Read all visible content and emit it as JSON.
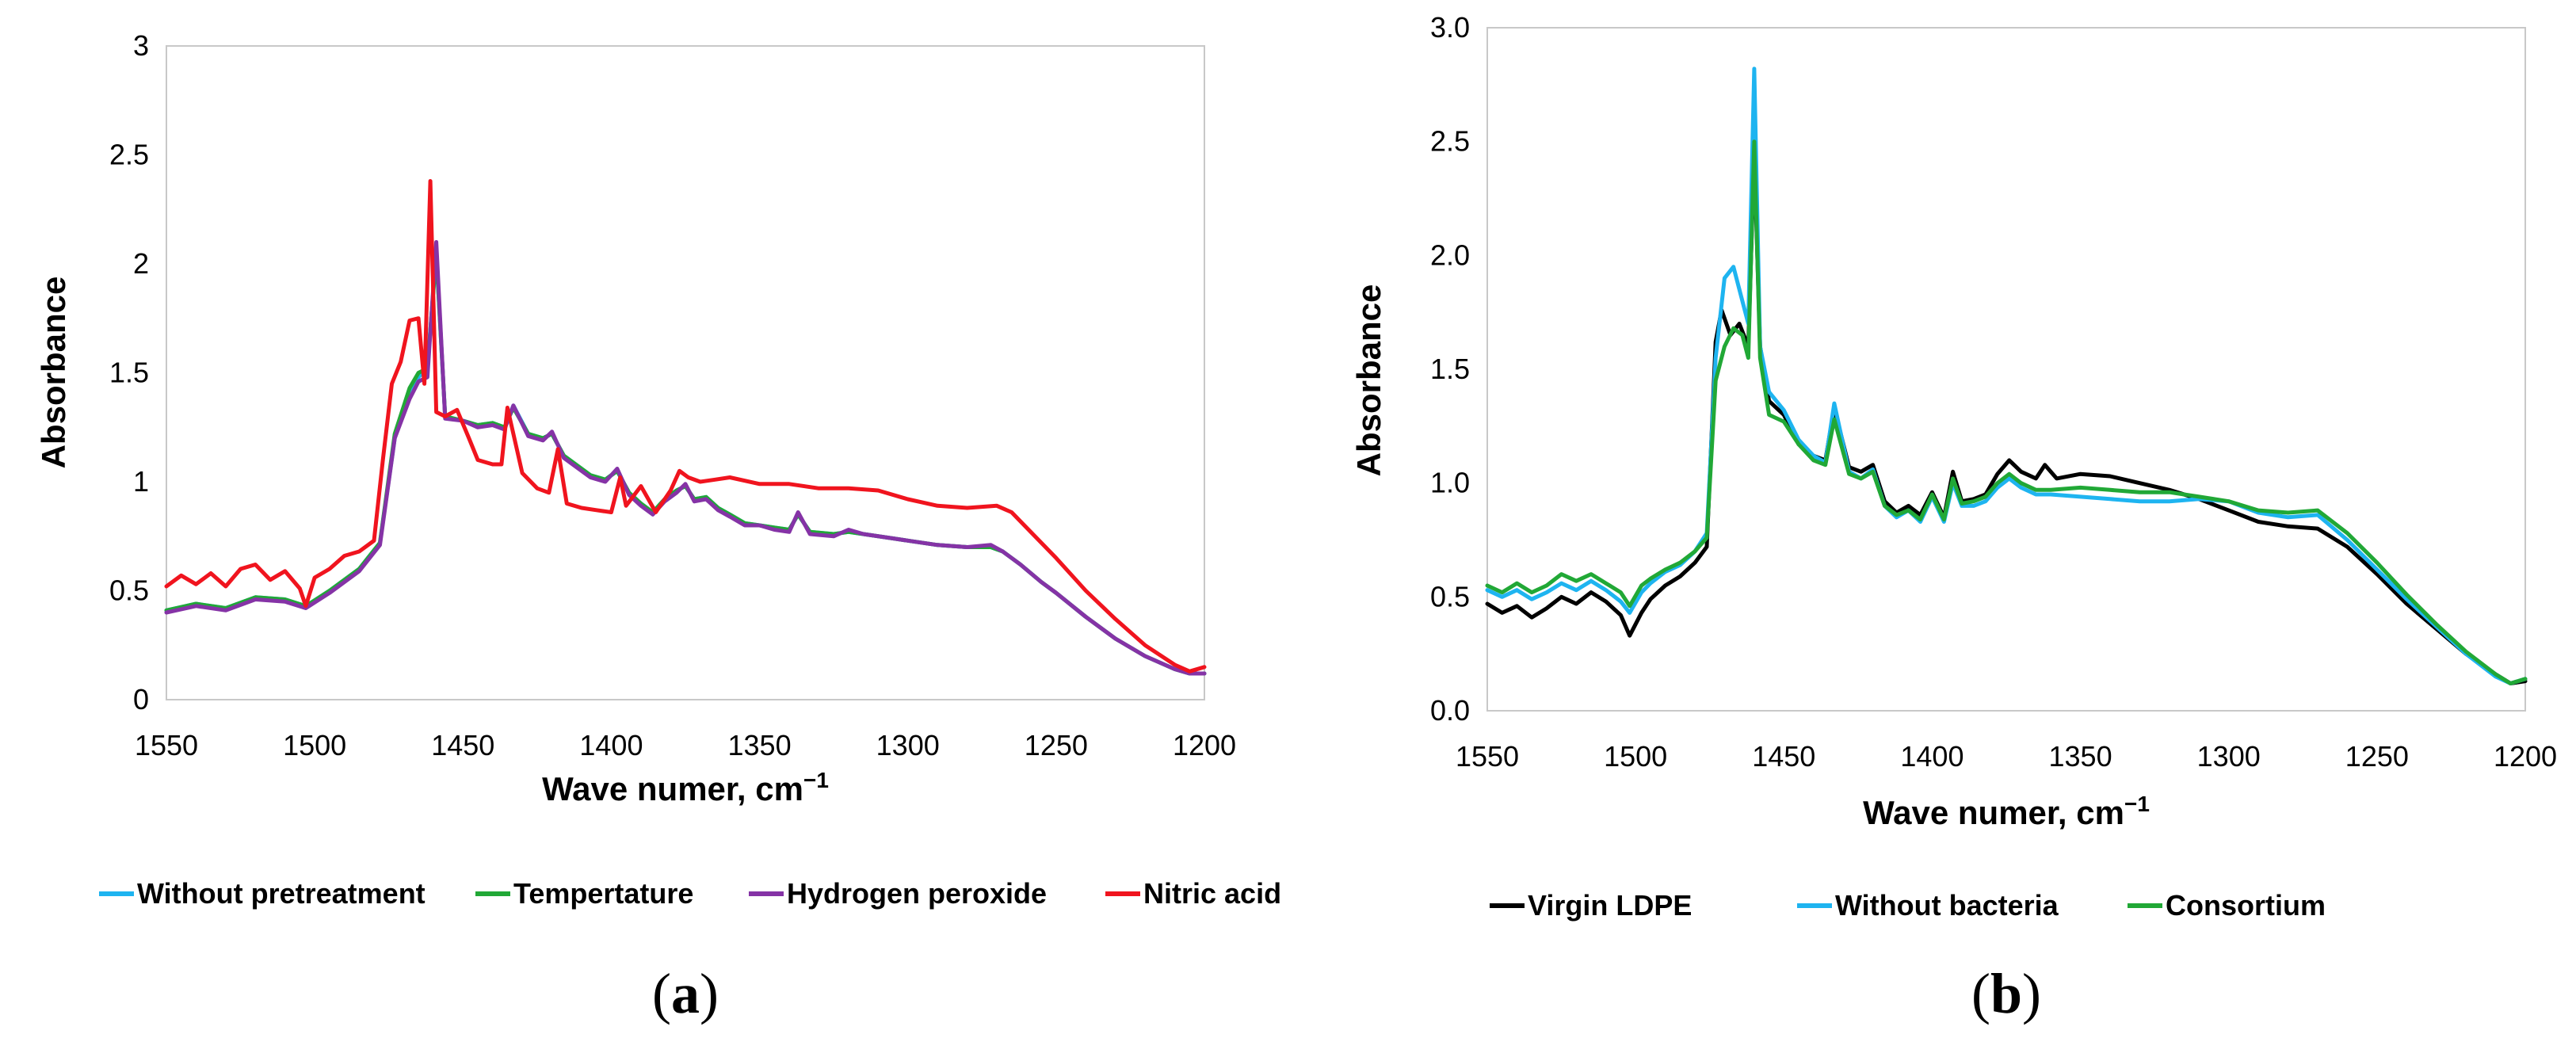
{
  "figure": {
    "panels": [
      {
        "label_open": "(",
        "label_letter": "a",
        "label_close": ")"
      },
      {
        "label_open": "(",
        "label_letter": "b",
        "label_close": ")"
      }
    ]
  },
  "chart_data": [
    {
      "type": "line",
      "title": "",
      "xlabel": "Wave numer, cm",
      "xlabel_sup": "−1",
      "ylabel": "Absorbance",
      "xlim": [
        1550,
        1200
      ],
      "ylim": [
        0,
        3
      ],
      "x_ticks": [
        "1550",
        "1500",
        "1450",
        "1400",
        "1350",
        "1300",
        "1250",
        "1200"
      ],
      "y_ticks": [
        "0",
        "0.5",
        "1",
        "1.5",
        "2",
        "2.5",
        "3"
      ],
      "grid": false,
      "legend_position": "bottom",
      "series": [
        {
          "name": "Without pretreatment",
          "color": "#1eb4f0",
          "x": [
            1550,
            1540,
            1530,
            1520,
            1510,
            1503,
            1495,
            1485,
            1478,
            1473,
            1468,
            1465,
            1462,
            1459,
            1456,
            1450,
            1445,
            1440,
            1436,
            1433,
            1428,
            1423,
            1420,
            1416,
            1412,
            1407,
            1402,
            1398,
            1394,
            1390,
            1386,
            1382,
            1378,
            1375,
            1372,
            1368,
            1364,
            1360,
            1355,
            1350,
            1345,
            1340,
            1337,
            1333,
            1325,
            1320,
            1315,
            1305,
            1300,
            1290,
            1280,
            1272,
            1268,
            1262,
            1255,
            1250,
            1240,
            1230,
            1220,
            1210,
            1205,
            1200
          ],
          "y": [
            0.41,
            0.44,
            0.42,
            0.47,
            0.46,
            0.43,
            0.5,
            0.6,
            0.72,
            1.2,
            1.42,
            1.48,
            1.52,
            2.05,
            1.3,
            1.28,
            1.26,
            1.27,
            1.25,
            1.35,
            1.22,
            1.2,
            1.22,
            1.12,
            1.08,
            1.03,
            1.01,
            1.05,
            0.95,
            0.9,
            0.86,
            0.92,
            0.96,
            0.98,
            0.92,
            0.93,
            0.88,
            0.85,
            0.81,
            0.8,
            0.79,
            0.78,
            0.85,
            0.77,
            0.76,
            0.77,
            0.76,
            0.74,
            0.73,
            0.71,
            0.7,
            0.7,
            0.68,
            0.62,
            0.54,
            0.49,
            0.38,
            0.28,
            0.2,
            0.14,
            0.12,
            0.12
          ]
        },
        {
          "name": "Tempertature",
          "color": "#21a836",
          "x": [
            1550,
            1540,
            1530,
            1520,
            1510,
            1503,
            1495,
            1485,
            1478,
            1473,
            1468,
            1465,
            1462,
            1459,
            1456,
            1450,
            1445,
            1440,
            1436,
            1433,
            1428,
            1423,
            1420,
            1416,
            1412,
            1407,
            1402,
            1398,
            1394,
            1390,
            1386,
            1382,
            1378,
            1375,
            1372,
            1368,
            1364,
            1360,
            1355,
            1350,
            1345,
            1340,
            1337,
            1333,
            1325,
            1320,
            1315,
            1305,
            1300,
            1290,
            1280,
            1272,
            1268,
            1262,
            1255,
            1250,
            1240,
            1230,
            1220,
            1210,
            1205,
            1200
          ],
          "y": [
            0.41,
            0.44,
            0.42,
            0.47,
            0.46,
            0.43,
            0.5,
            0.6,
            0.72,
            1.22,
            1.43,
            1.5,
            1.52,
            2.05,
            1.3,
            1.28,
            1.26,
            1.27,
            1.25,
            1.34,
            1.22,
            1.2,
            1.22,
            1.12,
            1.08,
            1.03,
            1.01,
            1.05,
            0.95,
            0.9,
            0.86,
            0.92,
            0.96,
            0.98,
            0.92,
            0.93,
            0.88,
            0.85,
            0.81,
            0.8,
            0.79,
            0.78,
            0.85,
            0.77,
            0.76,
            0.77,
            0.76,
            0.74,
            0.73,
            0.71,
            0.7,
            0.7,
            0.68,
            0.62,
            0.54,
            0.49,
            0.38,
            0.28,
            0.2,
            0.14,
            0.12,
            0.12
          ]
        },
        {
          "name": "Hydrogen peroxide",
          "color": "#8533a6",
          "x": [
            1550,
            1540,
            1530,
            1520,
            1510,
            1503,
            1495,
            1485,
            1478,
            1473,
            1468,
            1465,
            1462,
            1459,
            1456,
            1450,
            1445,
            1440,
            1436,
            1433,
            1428,
            1423,
            1420,
            1416,
            1412,
            1407,
            1402,
            1398,
            1394,
            1390,
            1386,
            1382,
            1378,
            1375,
            1372,
            1368,
            1364,
            1360,
            1355,
            1350,
            1345,
            1340,
            1337,
            1333,
            1325,
            1320,
            1315,
            1305,
            1300,
            1290,
            1280,
            1272,
            1268,
            1262,
            1255,
            1250,
            1240,
            1230,
            1220,
            1210,
            1205,
            1200
          ],
          "y": [
            0.4,
            0.43,
            0.41,
            0.46,
            0.45,
            0.42,
            0.49,
            0.59,
            0.71,
            1.2,
            1.38,
            1.46,
            1.48,
            2.1,
            1.29,
            1.28,
            1.25,
            1.26,
            1.24,
            1.35,
            1.21,
            1.19,
            1.23,
            1.11,
            1.07,
            1.02,
            1.0,
            1.06,
            0.94,
            0.89,
            0.85,
            0.91,
            0.95,
            0.99,
            0.91,
            0.92,
            0.87,
            0.84,
            0.8,
            0.8,
            0.78,
            0.77,
            0.86,
            0.76,
            0.75,
            0.78,
            0.76,
            0.74,
            0.73,
            0.71,
            0.7,
            0.71,
            0.68,
            0.62,
            0.54,
            0.49,
            0.38,
            0.28,
            0.2,
            0.14,
            0.12,
            0.12
          ]
        },
        {
          "name": "Nitric acid",
          "color": "#f0141e",
          "x": [
            1550,
            1545,
            1540,
            1535,
            1530,
            1525,
            1520,
            1515,
            1510,
            1505,
            1503,
            1500,
            1495,
            1490,
            1485,
            1480,
            1477,
            1474,
            1471,
            1468,
            1465,
            1463,
            1461,
            1459,
            1456,
            1452,
            1448,
            1445,
            1440,
            1437,
            1435,
            1430,
            1425,
            1421,
            1418,
            1415,
            1410,
            1405,
            1400,
            1397,
            1395,
            1390,
            1385,
            1380,
            1377,
            1374,
            1370,
            1365,
            1360,
            1350,
            1340,
            1330,
            1320,
            1310,
            1300,
            1290,
            1280,
            1270,
            1265,
            1260,
            1250,
            1240,
            1230,
            1220,
            1210,
            1205,
            1200
          ],
          "y": [
            0.52,
            0.57,
            0.53,
            0.58,
            0.52,
            0.6,
            0.62,
            0.55,
            0.59,
            0.51,
            0.43,
            0.56,
            0.6,
            0.66,
            0.68,
            0.73,
            1.1,
            1.45,
            1.55,
            1.74,
            1.75,
            1.45,
            2.38,
            1.32,
            1.3,
            1.33,
            1.2,
            1.1,
            1.08,
            1.08,
            1.34,
            1.04,
            0.97,
            0.95,
            1.15,
            0.9,
            0.88,
            0.87,
            0.86,
            1.02,
            0.89,
            0.98,
            0.86,
            0.96,
            1.05,
            1.02,
            1.0,
            1.01,
            1.02,
            0.99,
            0.99,
            0.97,
            0.97,
            0.96,
            0.92,
            0.89,
            0.88,
            0.89,
            0.86,
            0.79,
            0.65,
            0.5,
            0.37,
            0.25,
            0.16,
            0.13,
            0.15
          ]
        }
      ]
    },
    {
      "type": "line",
      "title": "",
      "xlabel": "Wave numer, cm",
      "xlabel_sup": "−1",
      "ylabel": "Absorbance",
      "xlim": [
        1550,
        1200
      ],
      "ylim": [
        0,
        3
      ],
      "x_ticks": [
        "1550",
        "1500",
        "1450",
        "1400",
        "1350",
        "1300",
        "1250",
        "1200"
      ],
      "y_ticks": [
        "0.0",
        "0.5",
        "1.0",
        "1.5",
        "2.0",
        "2.5",
        "3.0"
      ],
      "grid": false,
      "legend_position": "bottom",
      "series": [
        {
          "name": "Virgin LDPE",
          "color": "#000000",
          "x": [
            1550,
            1545,
            1540,
            1535,
            1530,
            1525,
            1520,
            1515,
            1510,
            1505,
            1502,
            1498,
            1495,
            1490,
            1485,
            1480,
            1476,
            1473,
            1471,
            1468,
            1465,
            1462,
            1460,
            1458,
            1455,
            1450,
            1445,
            1440,
            1436,
            1433,
            1428,
            1424,
            1420,
            1416,
            1412,
            1408,
            1404,
            1400,
            1396,
            1393,
            1390,
            1386,
            1382,
            1378,
            1374,
            1370,
            1365,
            1362,
            1358,
            1350,
            1340,
            1330,
            1320,
            1310,
            1300,
            1290,
            1280,
            1270,
            1260,
            1250,
            1240,
            1230,
            1220,
            1210,
            1205,
            1200
          ],
          "y": [
            0.47,
            0.43,
            0.46,
            0.41,
            0.45,
            0.5,
            0.47,
            0.52,
            0.48,
            0.42,
            0.33,
            0.43,
            0.49,
            0.55,
            0.59,
            0.65,
            0.72,
            1.62,
            1.76,
            1.65,
            1.7,
            1.6,
            2.45,
            1.6,
            1.36,
            1.3,
            1.17,
            1.12,
            1.1,
            1.33,
            1.07,
            1.05,
            1.08,
            0.92,
            0.87,
            0.9,
            0.86,
            0.96,
            0.85,
            1.05,
            0.92,
            0.93,
            0.95,
            1.04,
            1.1,
            1.05,
            1.02,
            1.08,
            1.02,
            1.04,
            1.03,
            1.0,
            0.97,
            0.93,
            0.88,
            0.83,
            0.81,
            0.8,
            0.72,
            0.6,
            0.47,
            0.36,
            0.25,
            0.16,
            0.12,
            0.13
          ]
        },
        {
          "name": "Without bacteria",
          "color": "#1eb4f0",
          "x": [
            1550,
            1545,
            1540,
            1535,
            1530,
            1525,
            1520,
            1515,
            1510,
            1505,
            1502,
            1498,
            1495,
            1490,
            1485,
            1480,
            1476,
            1473,
            1470,
            1467,
            1464,
            1462,
            1460,
            1458,
            1455,
            1450,
            1445,
            1440,
            1436,
            1433,
            1428,
            1424,
            1420,
            1416,
            1412,
            1408,
            1404,
            1400,
            1396,
            1393,
            1390,
            1386,
            1382,
            1378,
            1374,
            1370,
            1365,
            1360,
            1350,
            1340,
            1330,
            1320,
            1310,
            1300,
            1290,
            1280,
            1270,
            1260,
            1250,
            1240,
            1230,
            1220,
            1210,
            1205,
            1200
          ],
          "y": [
            0.53,
            0.5,
            0.53,
            0.49,
            0.52,
            0.56,
            0.53,
            0.57,
            0.53,
            0.48,
            0.43,
            0.52,
            0.56,
            0.61,
            0.64,
            0.7,
            0.78,
            1.55,
            1.9,
            1.95,
            1.8,
            1.7,
            2.82,
            1.6,
            1.4,
            1.32,
            1.19,
            1.12,
            1.09,
            1.35,
            1.05,
            1.02,
            1.06,
            0.9,
            0.85,
            0.88,
            0.83,
            0.94,
            0.83,
            1.0,
            0.9,
            0.9,
            0.92,
            0.98,
            1.02,
            0.98,
            0.95,
            0.95,
            0.94,
            0.93,
            0.92,
            0.92,
            0.93,
            0.92,
            0.87,
            0.85,
            0.86,
            0.75,
            0.62,
            0.49,
            0.37,
            0.25,
            0.15,
            0.12,
            0.14
          ]
        },
        {
          "name": "Consortium",
          "color": "#21a836",
          "x": [
            1550,
            1545,
            1540,
            1535,
            1530,
            1525,
            1520,
            1515,
            1510,
            1505,
            1502,
            1498,
            1495,
            1490,
            1485,
            1480,
            1476,
            1473,
            1470,
            1467,
            1464,
            1462,
            1460,
            1458,
            1455,
            1450,
            1445,
            1440,
            1436,
            1433,
            1428,
            1424,
            1420,
            1416,
            1412,
            1408,
            1404,
            1400,
            1396,
            1393,
            1390,
            1386,
            1382,
            1378,
            1374,
            1370,
            1365,
            1360,
            1350,
            1340,
            1330,
            1320,
            1310,
            1300,
            1290,
            1280,
            1270,
            1260,
            1250,
            1240,
            1230,
            1220,
            1210,
            1205,
            1200
          ],
          "y": [
            0.55,
            0.52,
            0.56,
            0.52,
            0.55,
            0.6,
            0.57,
            0.6,
            0.56,
            0.52,
            0.46,
            0.55,
            0.58,
            0.62,
            0.65,
            0.7,
            0.76,
            1.45,
            1.6,
            1.68,
            1.65,
            1.55,
            2.5,
            1.55,
            1.3,
            1.27,
            1.17,
            1.1,
            1.08,
            1.28,
            1.04,
            1.02,
            1.05,
            0.9,
            0.86,
            0.88,
            0.84,
            0.95,
            0.84,
            1.02,
            0.91,
            0.92,
            0.94,
            1.0,
            1.04,
            1.0,
            0.97,
            0.97,
            0.98,
            0.97,
            0.96,
            0.96,
            0.94,
            0.92,
            0.88,
            0.87,
            0.88,
            0.78,
            0.65,
            0.51,
            0.38,
            0.26,
            0.16,
            0.12,
            0.14
          ]
        }
      ]
    }
  ]
}
